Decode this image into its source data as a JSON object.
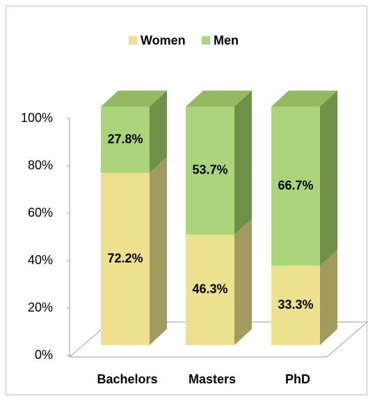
{
  "chart_data": {
    "type": "bar3d_stacked_percent",
    "categories": [
      "Bachelors",
      "Masters",
      "PhD"
    ],
    "series": [
      {
        "name": "Women",
        "color": "#ede08e",
        "side_color": "#a29b5d",
        "values": [
          72.2,
          46.3,
          33.3
        ],
        "value_labels": [
          "72.2%",
          "46.3%",
          "33.3%"
        ]
      },
      {
        "name": "Men",
        "color": "#aad57a",
        "side_color": "#6e9147",
        "top_color": "#92ba63",
        "values": [
          27.8,
          53.7,
          66.7
        ],
        "value_labels": [
          "27.8%",
          "53.7%",
          "66.7%"
        ]
      }
    ],
    "ylim": [
      0,
      100
    ],
    "yticks": [
      {
        "value": 0,
        "label": "0%"
      },
      {
        "value": 20,
        "label": "20%"
      },
      {
        "value": 40,
        "label": "40%"
      },
      {
        "value": 60,
        "label": "60%"
      },
      {
        "value": 80,
        "label": "80%"
      },
      {
        "value": 100,
        "label": "100%"
      }
    ],
    "legend": "top"
  }
}
